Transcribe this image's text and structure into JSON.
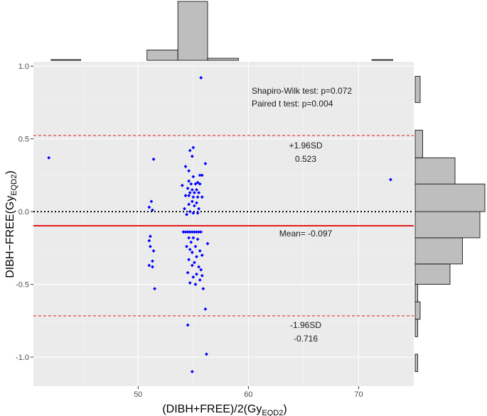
{
  "chart_data": {
    "type": "scatter",
    "subtype": "bland-altman with marginal histograms",
    "xlabel": {
      "prefix": "(DIBH+FREE)/2(Gy",
      "sub": "EQD2",
      "suffix": ")"
    },
    "ylabel": {
      "prefix": "DIBH−FREE(Gy",
      "sub": "EQD2",
      "suffix": ")"
    },
    "xlim": [
      40.5,
      75
    ],
    "ylim": [
      -1.2,
      1.03
    ],
    "x_ticks": [
      50,
      60,
      70
    ],
    "y_ticks": [
      -1.0,
      -0.5,
      0.0,
      0.5,
      1.0
    ],
    "y_tick_labels": [
      "-1.0",
      "-0.5",
      "0.0",
      "0.5",
      "1.0"
    ],
    "grid": true,
    "points_color": "#0000ff",
    "mean_line": {
      "y": -0.097,
      "color": "#e31a1c"
    },
    "zero_line": {
      "y": 0.0,
      "color": "#000000"
    },
    "upper_loa": {
      "y": 0.523,
      "color": "#e31a1c"
    },
    "lower_loa": {
      "y": -0.716,
      "color": "#e31a1c"
    },
    "annotations": {
      "shapiro": "Shapiro-Wilk test: p=0.072",
      "paired": "Paired t test: p=0.004",
      "upper_label": "+1.96SD",
      "upper_value": "0.523",
      "mean_label": "Mean= -0.097",
      "lower_label": "-1.96SD",
      "lower_value": "-0.716"
    },
    "points": [
      {
        "x": 41.9,
        "y": 0.37
      },
      {
        "x": 72.9,
        "y": 0.22
      },
      {
        "x": 55.7,
        "y": 0.92
      },
      {
        "x": 51.4,
        "y": 0.36
      },
      {
        "x": 51.2,
        "y": 0.07
      },
      {
        "x": 51.0,
        "y": 0.03
      },
      {
        "x": 51.3,
        "y": 0.01
      },
      {
        "x": 51.1,
        "y": -0.17
      },
      {
        "x": 51.0,
        "y": -0.2
      },
      {
        "x": 51.1,
        "y": -0.24
      },
      {
        "x": 51.4,
        "y": -0.27
      },
      {
        "x": 51.3,
        "y": -0.34
      },
      {
        "x": 51.0,
        "y": -0.37
      },
      {
        "x": 51.3,
        "y": -0.38
      },
      {
        "x": 51.5,
        "y": -0.53
      },
      {
        "x": 55.0,
        "y": 0.44
      },
      {
        "x": 54.7,
        "y": 0.42
      },
      {
        "x": 54.9,
        "y": 0.38
      },
      {
        "x": 56.1,
        "y": 0.33
      },
      {
        "x": 54.3,
        "y": 0.31
      },
      {
        "x": 54.6,
        "y": 0.28
      },
      {
        "x": 55.0,
        "y": 0.24
      },
      {
        "x": 55.6,
        "y": 0.25
      },
      {
        "x": 55.8,
        "y": 0.25
      },
      {
        "x": 54.6,
        "y": 0.21
      },
      {
        "x": 55.4,
        "y": 0.2
      },
      {
        "x": 54.8,
        "y": 0.19
      },
      {
        "x": 55.2,
        "y": 0.19
      },
      {
        "x": 55.6,
        "y": 0.19
      },
      {
        "x": 54.0,
        "y": 0.18
      },
      {
        "x": 54.5,
        "y": 0.16
      },
      {
        "x": 54.9,
        "y": 0.15
      },
      {
        "x": 55.3,
        "y": 0.15
      },
      {
        "x": 54.7,
        "y": 0.13
      },
      {
        "x": 55.1,
        "y": 0.13
      },
      {
        "x": 55.5,
        "y": 0.13
      },
      {
        "x": 54.3,
        "y": 0.11
      },
      {
        "x": 54.6,
        "y": 0.11
      },
      {
        "x": 55.0,
        "y": 0.1
      },
      {
        "x": 55.4,
        "y": 0.1
      },
      {
        "x": 55.8,
        "y": 0.1
      },
      {
        "x": 54.9,
        "y": 0.07
      },
      {
        "x": 55.3,
        "y": 0.06
      },
      {
        "x": 54.6,
        "y": 0.05
      },
      {
        "x": 55.1,
        "y": 0.04
      },
      {
        "x": 54.2,
        "y": 0.02
      },
      {
        "x": 55.5,
        "y": 0.02
      },
      {
        "x": 54.7,
        "y": 0.0
      },
      {
        "x": 55.0,
        "y": -0.01
      },
      {
        "x": 55.4,
        "y": -0.01
      },
      {
        "x": 54.4,
        "y": -0.02
      },
      {
        "x": 54.1,
        "y": -0.14
      },
      {
        "x": 54.3,
        "y": -0.14
      },
      {
        "x": 54.5,
        "y": -0.14
      },
      {
        "x": 54.7,
        "y": -0.14
      },
      {
        "x": 54.9,
        "y": -0.14
      },
      {
        "x": 55.1,
        "y": -0.14
      },
      {
        "x": 55.3,
        "y": -0.14
      },
      {
        "x": 55.5,
        "y": -0.14
      },
      {
        "x": 55.7,
        "y": -0.14
      },
      {
        "x": 54.6,
        "y": -0.18
      },
      {
        "x": 55.0,
        "y": -0.18
      },
      {
        "x": 55.4,
        "y": -0.19
      },
      {
        "x": 54.8,
        "y": -0.21
      },
      {
        "x": 56.3,
        "y": -0.22
      },
      {
        "x": 54.4,
        "y": -0.24
      },
      {
        "x": 55.2,
        "y": -0.24
      },
      {
        "x": 54.7,
        "y": -0.26
      },
      {
        "x": 55.6,
        "y": -0.27
      },
      {
        "x": 54.9,
        "y": -0.28
      },
      {
        "x": 55.3,
        "y": -0.31
      },
      {
        "x": 55.8,
        "y": -0.3
      },
      {
        "x": 54.6,
        "y": -0.33
      },
      {
        "x": 55.1,
        "y": -0.35
      },
      {
        "x": 54.9,
        "y": -0.37
      },
      {
        "x": 55.5,
        "y": -0.38
      },
      {
        "x": 55.7,
        "y": -0.4
      },
      {
        "x": 54.5,
        "y": -0.42
      },
      {
        "x": 55.3,
        "y": -0.43
      },
      {
        "x": 55.8,
        "y": -0.44
      },
      {
        "x": 55.0,
        "y": -0.45
      },
      {
        "x": 55.6,
        "y": -0.47
      },
      {
        "x": 54.7,
        "y": -0.49
      },
      {
        "x": 55.2,
        "y": -0.5
      },
      {
        "x": 55.9,
        "y": -0.53
      },
      {
        "x": 56.1,
        "y": -0.67
      },
      {
        "x": 54.5,
        "y": -0.78
      },
      {
        "x": 56.2,
        "y": -0.98
      },
      {
        "x": 54.9,
        "y": -1.1
      }
    ],
    "top_histogram": {
      "bins": [
        {
          "x0": 42.1,
          "x1": 44.8,
          "value": 1
        },
        {
          "x0": 50.8,
          "x1": 53.6,
          "value": 15
        },
        {
          "x0": 53.6,
          "x1": 56.3,
          "value": 85
        },
        {
          "x0": 56.3,
          "x1": 59.1,
          "value": 3
        },
        {
          "x0": 71.2,
          "x1": 73.1,
          "value": 1
        }
      ],
      "max": 85
    },
    "right_histogram": {
      "bins": [
        {
          "y0": -1.1,
          "y1": -0.98,
          "value": 1
        },
        {
          "y0": -0.98,
          "y1": -0.86,
          "value": 0
        },
        {
          "y0": -0.86,
          "y1": -0.74,
          "value": 1
        },
        {
          "y0": -0.74,
          "y1": -0.62,
          "value": 2
        },
        {
          "y0": -0.62,
          "y1": -0.5,
          "value": 1
        },
        {
          "y0": -0.5,
          "y1": -0.36,
          "value": 14
        },
        {
          "y0": -0.36,
          "y1": -0.18,
          "value": 19
        },
        {
          "y0": -0.18,
          "y1": 0.0,
          "value": 26
        },
        {
          "y0": 0.0,
          "y1": 0.19,
          "value": 28
        },
        {
          "y0": 0.19,
          "y1": 0.37,
          "value": 16
        },
        {
          "y0": 0.37,
          "y1": 0.56,
          "value": 3
        },
        {
          "y0": 0.56,
          "y1": 0.75,
          "value": 0
        },
        {
          "y0": 0.75,
          "y1": 0.93,
          "value": 2
        }
      ],
      "max": 28
    }
  }
}
